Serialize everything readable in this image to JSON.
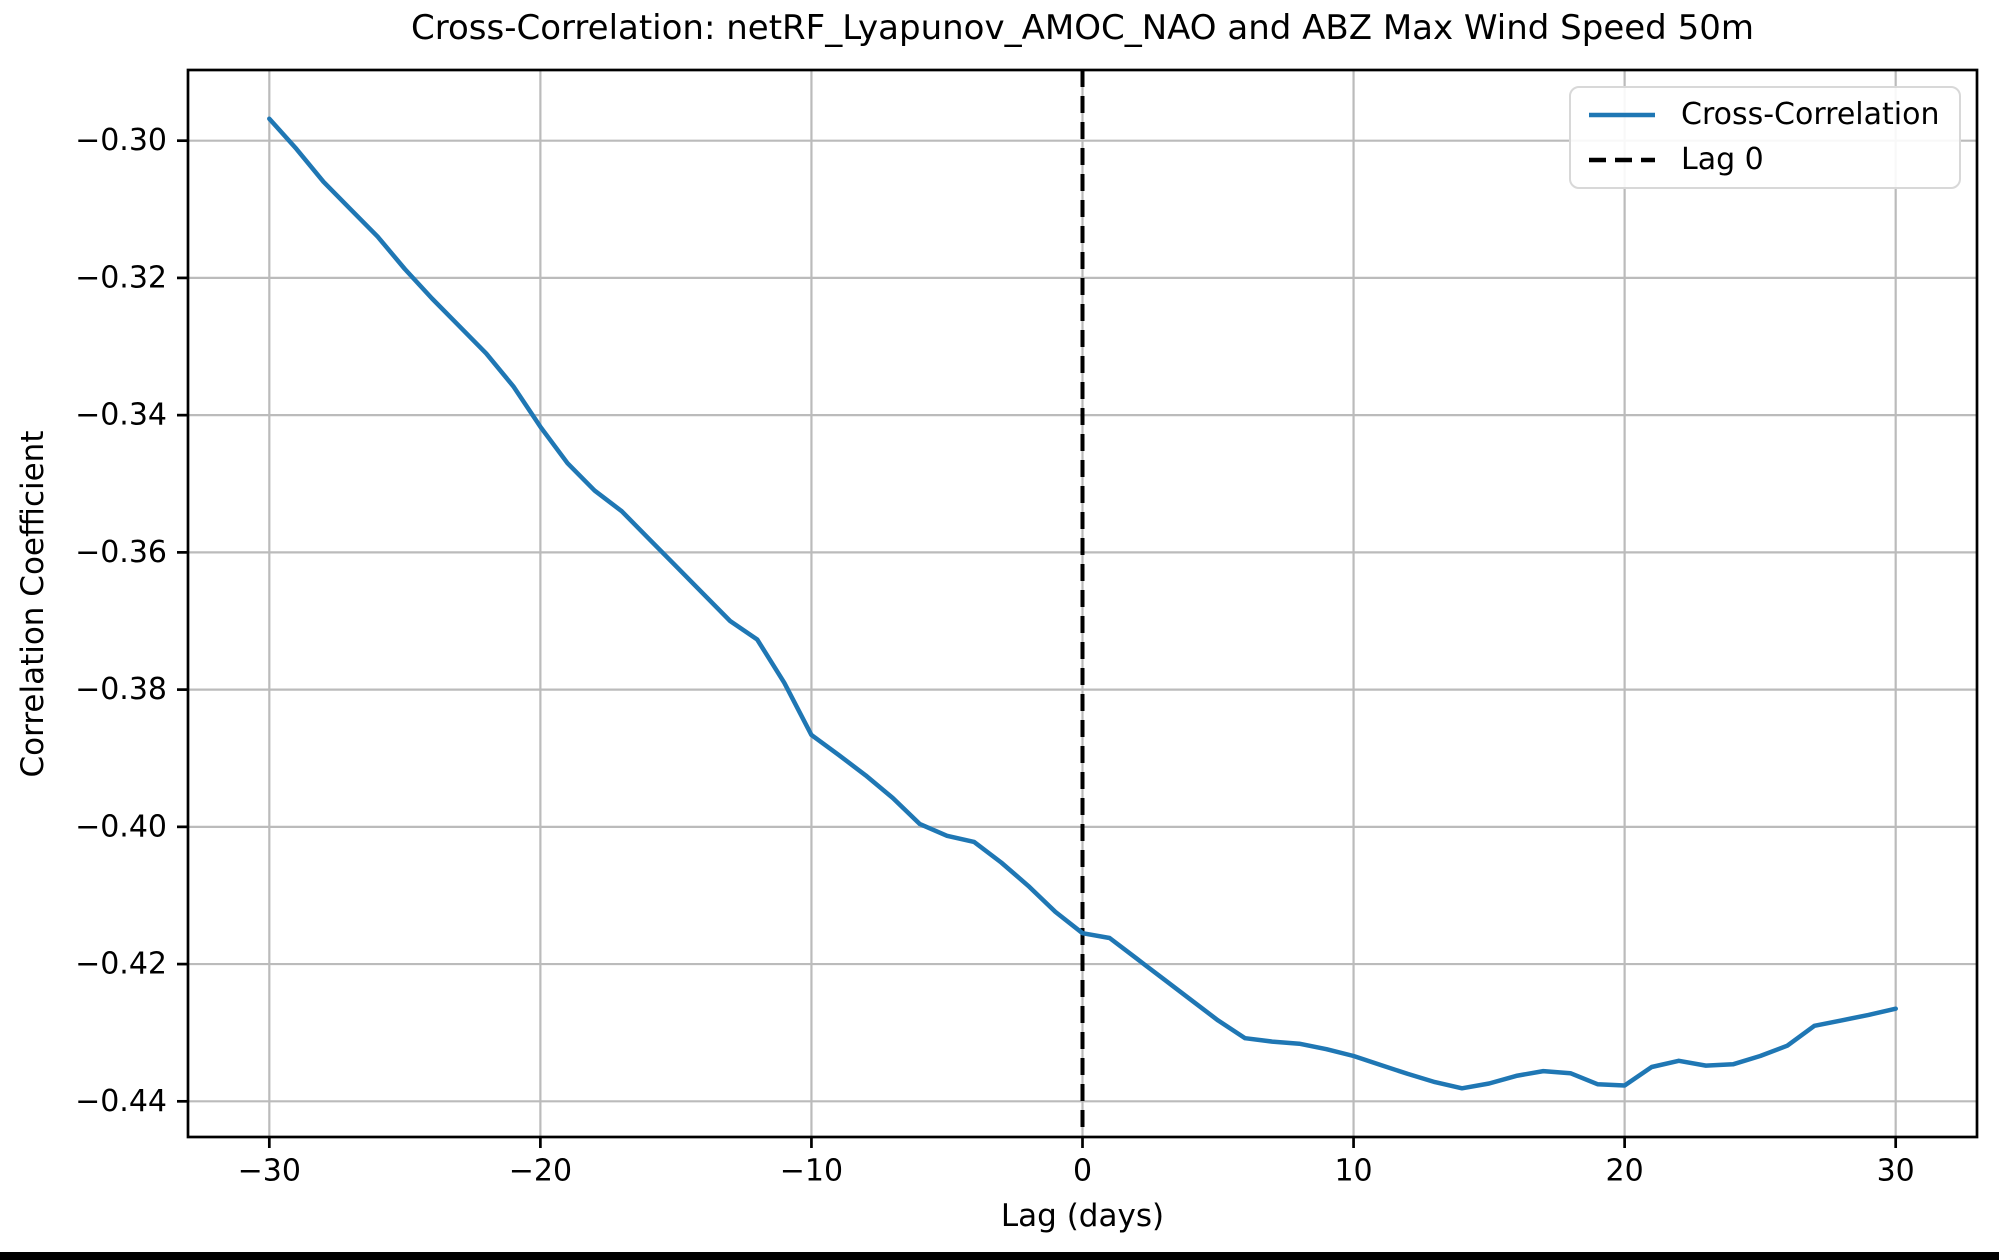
{
  "chart_data": {
    "type": "line",
    "title": "Cross-Correlation: netRF_Lyapunov_AMOC_NAO and ABZ Max Wind Speed 50m",
    "xlabel": "Lag (days)",
    "ylabel": "Correlation Coefficient",
    "xlim": [
      -33,
      33
    ],
    "ylim": [
      -0.4452,
      -0.2897
    ],
    "grid": true,
    "legend_position": "upper right",
    "x_ticks": [
      -30,
      -20,
      -10,
      0,
      10,
      20,
      30
    ],
    "x_tick_labels": [
      "−30",
      "−20",
      "−10",
      "0",
      "10",
      "20",
      "30"
    ],
    "y_ticks": [
      -0.3,
      -0.32,
      -0.34,
      -0.36,
      -0.38,
      -0.4,
      -0.42,
      -0.44
    ],
    "y_tick_labels": [
      "−0.30",
      "−0.32",
      "−0.34",
      "−0.36",
      "−0.38",
      "−0.40",
      "−0.42",
      "−0.44"
    ],
    "x": [
      -30,
      -29,
      -28,
      -27,
      -26,
      -25,
      -24,
      -23,
      -22,
      -21,
      -20,
      -19,
      -18,
      -17,
      -16,
      -15,
      -14,
      -13,
      -12,
      -11,
      -10,
      -9,
      -8,
      -7,
      -6,
      -5,
      -4,
      -3,
      -2,
      -1,
      0,
      1,
      2,
      3,
      4,
      5,
      6,
      7,
      8,
      9,
      10,
      11,
      12,
      13,
      14,
      15,
      16,
      17,
      18,
      19,
      20,
      21,
      22,
      23,
      24,
      25,
      26,
      27,
      28,
      29,
      30
    ],
    "series": [
      {
        "name": "Cross-Correlation",
        "color": "#1f77b4",
        "values": [
          -0.2968,
          -0.3012,
          -0.306,
          -0.31,
          -0.314,
          -0.3187,
          -0.323,
          -0.327,
          -0.331,
          -0.3358,
          -0.3417,
          -0.347,
          -0.351,
          -0.354,
          -0.358,
          -0.362,
          -0.366,
          -0.37,
          -0.3727,
          -0.379,
          -0.3866,
          -0.3895,
          -0.3925,
          -0.3958,
          -0.3996,
          -0.4013,
          -0.4022,
          -0.4052,
          -0.4086,
          -0.4124,
          -0.4155,
          -0.4162,
          -0.4192,
          -0.4222,
          -0.4252,
          -0.4282,
          -0.4308,
          -0.4313,
          -0.4316,
          -0.4324,
          -0.4334,
          -0.4347,
          -0.436,
          -0.4372,
          -0.4381,
          -0.4374,
          -0.4363,
          -0.4356,
          -0.4359,
          -0.4375,
          -0.4377,
          -0.435,
          -0.4341,
          -0.4348,
          -0.4346,
          -0.4334,
          -0.4319,
          -0.429,
          -0.4282,
          -0.4274,
          -0.4265
        ]
      }
    ],
    "vline": {
      "x": 0,
      "label": "Lag 0",
      "color": "#000000",
      "style": "dashed"
    }
  },
  "legend": {
    "items": [
      {
        "label": "Cross-Correlation",
        "color": "#1f77b4",
        "style": "solid"
      },
      {
        "label": "Lag 0",
        "color": "#000000",
        "style": "dashed"
      }
    ]
  }
}
